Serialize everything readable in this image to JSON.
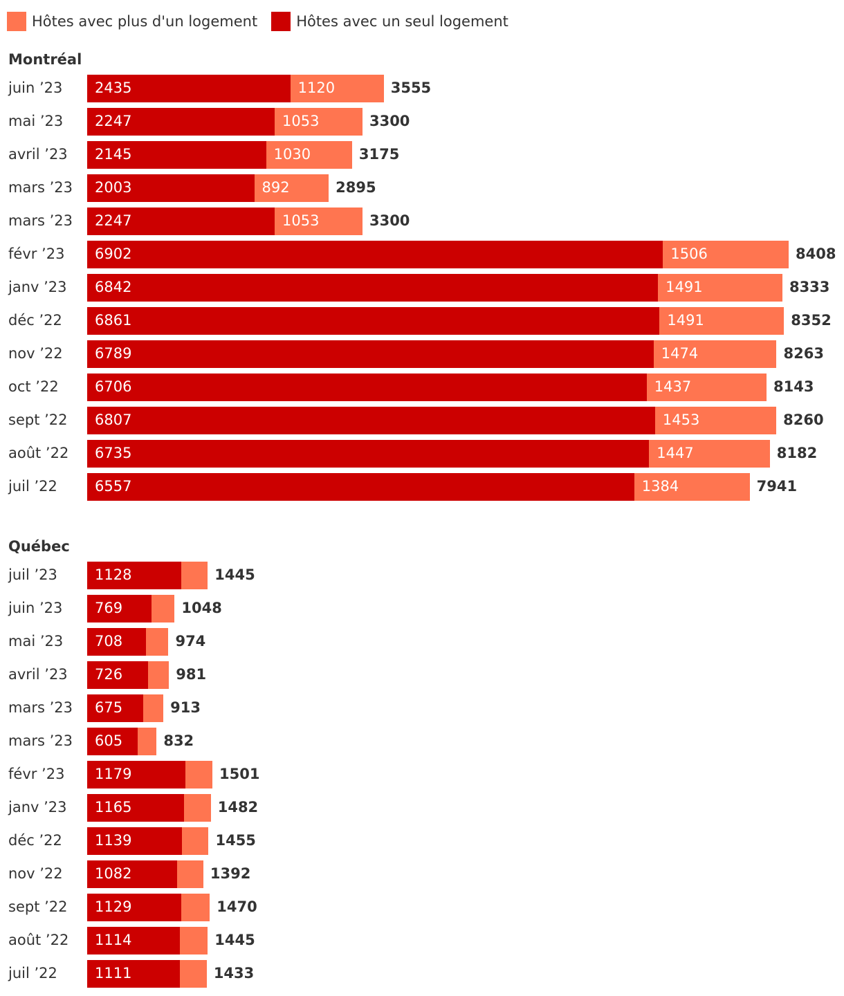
{
  "chart_data": {
    "type": "bar",
    "stacked": true,
    "orientation": "horizontal",
    "colors": {
      "single": "#cc0000",
      "multi": "#ff7550"
    },
    "legend": [
      {
        "key": "multi",
        "label": "Hôtes avec plus d'un logement"
      },
      {
        "key": "single",
        "label": "Hôtes avec un seul logement"
      }
    ],
    "panels": [
      {
        "title": "Montréal",
        "show_multi_labels": true,
        "rows": [
          {
            "label": "juin ’23",
            "single": 2435,
            "multi": 1120,
            "total": 3555
          },
          {
            "label": "mai ’23",
            "single": 2247,
            "multi": 1053,
            "total": 3300
          },
          {
            "label": "avril ’23",
            "single": 2145,
            "multi": 1030,
            "total": 3175
          },
          {
            "label": "mars ’23",
            "single": 2003,
            "multi": 892,
            "total": 2895
          },
          {
            "label": "mars ’23",
            "single": 2247,
            "multi": 1053,
            "total": 3300
          },
          {
            "label": "févr ’23",
            "single": 6902,
            "multi": 1506,
            "total": 8408
          },
          {
            "label": "janv ’23",
            "single": 6842,
            "multi": 1491,
            "total": 8333
          },
          {
            "label": "déc ’22",
            "single": 6861,
            "multi": 1491,
            "total": 8352
          },
          {
            "label": "nov ’22",
            "single": 6789,
            "multi": 1474,
            "total": 8263
          },
          {
            "label": "oct ’22",
            "single": 6706,
            "multi": 1437,
            "total": 8143
          },
          {
            "label": "sept ’22",
            "single": 6807,
            "multi": 1453,
            "total": 8260
          },
          {
            "label": "août ’22",
            "single": 6735,
            "multi": 1447,
            "total": 8182
          },
          {
            "label": "juil ’22",
            "single": 6557,
            "multi": 1384,
            "total": 7941
          }
        ]
      },
      {
        "title": "Québec",
        "show_multi_labels": false,
        "rows": [
          {
            "label": "juil ’23",
            "single": 1128,
            "total": 1445
          },
          {
            "label": "juin ’23",
            "single": 769,
            "total": 1048
          },
          {
            "label": "mai ’23",
            "single": 708,
            "total": 974
          },
          {
            "label": "avril ’23",
            "single": 726,
            "total": 981
          },
          {
            "label": "mars ’23",
            "single": 675,
            "total": 913
          },
          {
            "label": "mars ’23",
            "single": 605,
            "total": 832
          },
          {
            "label": "févr ’23",
            "single": 1179,
            "total": 1501
          },
          {
            "label": "janv ’23",
            "single": 1165,
            "total": 1482
          },
          {
            "label": "déc ’22",
            "single": 1139,
            "total": 1455
          },
          {
            "label": "nov ’22",
            "single": 1082,
            "total": 1392
          },
          {
            "label": "sept ’22",
            "single": 1129,
            "total": 1470
          },
          {
            "label": "août ’22",
            "single": 1114,
            "total": 1445
          },
          {
            "label": "juil ’22",
            "single": 1111,
            "total": 1433
          }
        ]
      }
    ],
    "xlim": [
      0,
      8408
    ]
  }
}
